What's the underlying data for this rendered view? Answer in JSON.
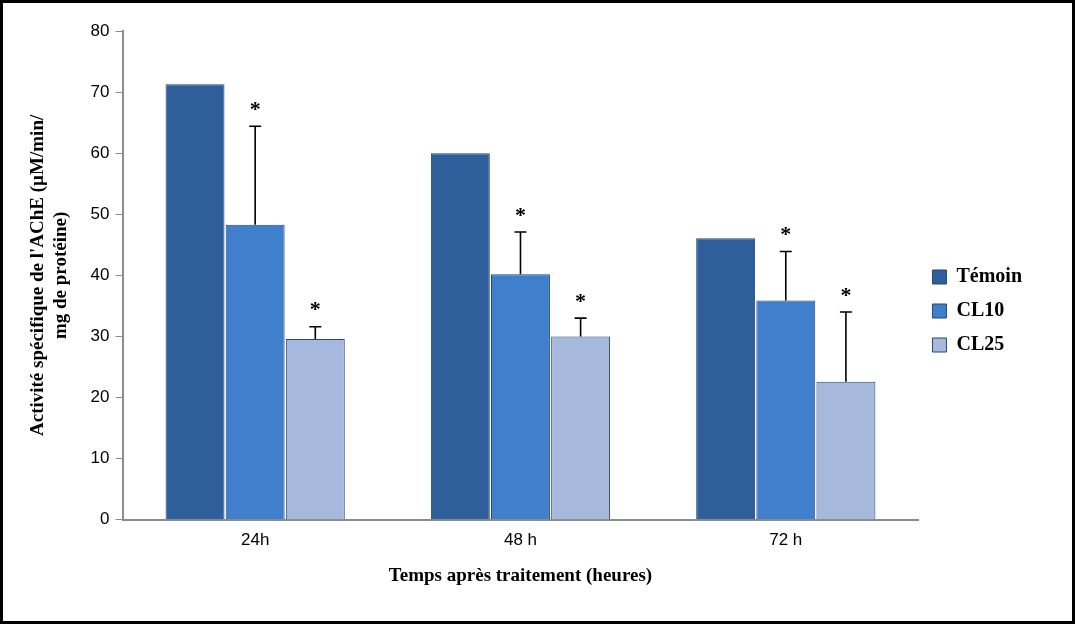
{
  "chart_data": {
    "type": "bar",
    "xlabel": "Temps après traitement (heures)",
    "ylabel": "Activité spécifique de l'AChE (µM/min/ mg de protéine)",
    "categories": [
      "24h",
      "48 h",
      "72 h"
    ],
    "series": [
      {
        "name": "Témoin",
        "color": "#2f5f9a",
        "values": [
          71.3,
          60.0,
          46.1
        ]
      },
      {
        "name": "CL10",
        "color": "#3f7fcc",
        "values": [
          48.3,
          40.2,
          35.9
        ],
        "errors": [
          [
            48.3,
            64.4
          ],
          [
            40.2,
            47.1
          ],
          [
            35.9,
            43.9
          ]
        ]
      },
      {
        "name": "CL25",
        "color": "#a6b9dd",
        "values": [
          29.6,
          30.0,
          22.6
        ],
        "errors": [
          [
            29.6,
            31.6
          ],
          [
            30.0,
            33.0
          ],
          [
            22.6,
            34.0
          ]
        ]
      }
    ],
    "ylim": [
      0,
      80
    ],
    "yticks": [
      0,
      10,
      20,
      30,
      40,
      50,
      60,
      70,
      80
    ],
    "grid": false,
    "legend": "right",
    "annotations": [
      "*",
      "*",
      "*",
      "*",
      "*",
      "*"
    ]
  }
}
